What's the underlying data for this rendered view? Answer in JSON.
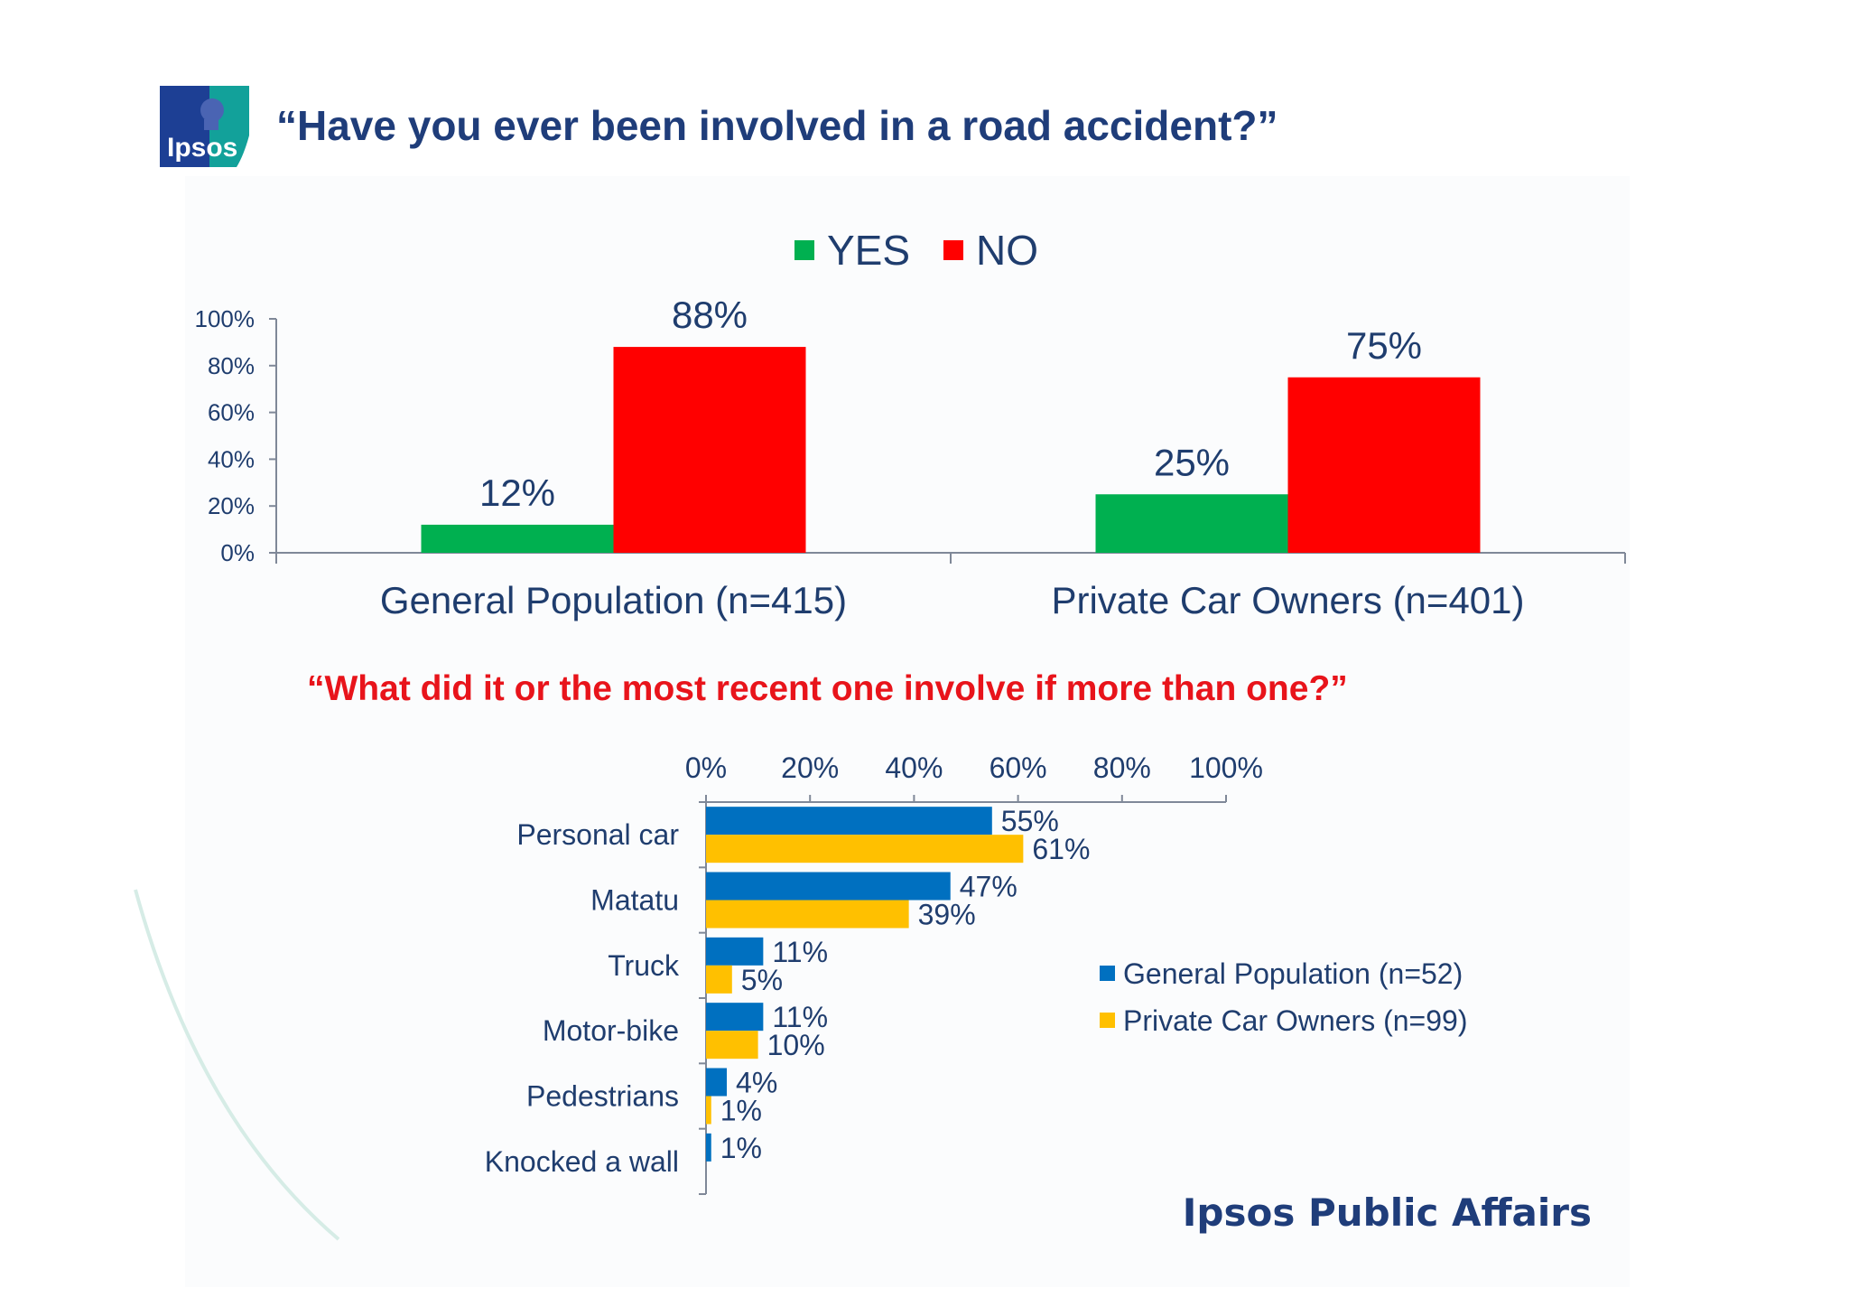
{
  "header": {
    "title": "“Have you ever been involved in a road accident?”",
    "logo_text": "Ipsos"
  },
  "question2": "“What did it or the most recent one involve if more than one?”",
  "footer": {
    "brand": "Ipsos Public Affairs"
  },
  "colors": {
    "title": "#1f3d7a",
    "question2": "#e8141b",
    "text": "#1f3d6e",
    "yes": "#00b050",
    "no": "#ff0000",
    "general": "#0070c0",
    "private": "#ffc000",
    "axis": "#7f8898"
  },
  "chart_data": [
    {
      "type": "bar",
      "categories": [
        "General Population (n=415)",
        "Private Car Owners (n=401)"
      ],
      "series": [
        {
          "name": "YES",
          "values": [
            12,
            25
          ],
          "labels": [
            "12%",
            "25%"
          ]
        },
        {
          "name": "NO",
          "values": [
            88,
            75
          ],
          "labels": [
            "88%",
            "75%"
          ]
        }
      ],
      "ylim": [
        0,
        100
      ],
      "yticks": [
        "0%",
        "20%",
        "40%",
        "60%",
        "80%",
        "100%"
      ],
      "legend": "top-center",
      "grid": false
    },
    {
      "type": "bar",
      "orientation": "horizontal",
      "categories": [
        "Personal car",
        "Matatu",
        "Truck",
        "Motor-bike",
        "Pedestrians",
        "Knocked a wall"
      ],
      "series": [
        {
          "name": "General Population (n=52)",
          "values": [
            55,
            47,
            11,
            11,
            4,
            1
          ],
          "labels": [
            "55%",
            "47%",
            "11%",
            "11%",
            "4%",
            "1%"
          ]
        },
        {
          "name": "Private Car Owners (n=99)",
          "values": [
            61,
            39,
            5,
            10,
            1,
            null
          ],
          "labels": [
            "61%",
            "39%",
            "5%",
            "10%",
            "1%",
            null
          ]
        }
      ],
      "xlim": [
        0,
        100
      ],
      "xticks": [
        "0%",
        "20%",
        "40%",
        "60%",
        "80%",
        "100%"
      ],
      "legend": "right",
      "grid": false
    }
  ]
}
